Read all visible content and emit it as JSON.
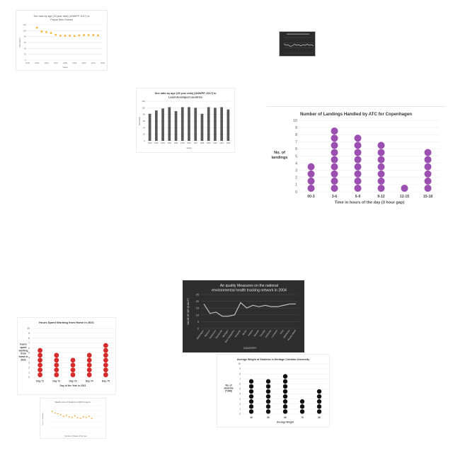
{
  "chart_data": [
    {
      "id": "p1",
      "type": "scatter",
      "title": "Sex ratio by age (15 year olds) (UNWPP, 2017) in Papua New Guinea",
      "xlabel": "Years",
      "ylabel": "Sex Ratio",
      "xlim": [
        1940,
        2020
      ],
      "ylim": [
        0,
        120
      ],
      "xticks": [
        "1940",
        "1950",
        "1960",
        "1970",
        "1980",
        "1990",
        "2000",
        "2010",
        "2020"
      ],
      "yticks": [
        "0",
        "20",
        "40",
        "60",
        "80",
        "100",
        "120"
      ],
      "x": [
        1950,
        1955,
        1960,
        1965,
        1970,
        1975,
        1980,
        1985,
        1990,
        1995,
        2000,
        2005,
        2010,
        2015
      ],
      "y": [
        110,
        97,
        95,
        92,
        86,
        83,
        83,
        83,
        82,
        84,
        85,
        85,
        85,
        84
      ],
      "color": "#f6b73c",
      "grid": true
    },
    {
      "id": "p2",
      "type": "line",
      "x": [
        1,
        2,
        3,
        4,
        5,
        6,
        7,
        8,
        9,
        10,
        11,
        12,
        13,
        14,
        15
      ],
      "y": [
        18,
        15,
        16,
        13,
        14,
        17,
        15,
        16,
        14,
        16,
        15,
        17,
        15,
        16,
        14
      ],
      "ylim": [
        0,
        30
      ],
      "color": "#cccccc",
      "background": "#2b2b2b"
    },
    {
      "id": "p3",
      "type": "bar",
      "title": "Sex ratio by age (15 year olds) (UNWPP, 2017) in Least developed countries",
      "xlabel": "Years",
      "ylabel": "Sex Ratio",
      "ylim": [
        0,
        120
      ],
      "yticks": [
        "0",
        "20",
        "40",
        "60",
        "80",
        "100",
        "120"
      ],
      "categories": [
        "1950",
        "1951",
        "1952",
        "1953",
        "1954",
        "1955",
        "1956",
        "1957",
        "1958",
        "1959",
        "1960",
        "1961",
        "1962"
      ],
      "values": [
        82,
        92,
        98,
        102,
        90,
        102,
        102,
        100,
        82,
        102,
        100,
        102,
        95
      ],
      "color": "#595959",
      "grid": true
    },
    {
      "id": "p4",
      "type": "bar",
      "title": "Number of Landings Handled by ATC for Copenhagen",
      "xlabel": "Time in hours of the day (3 hour gap)",
      "ylabel": "No. of landings",
      "ylim": [
        0,
        10
      ],
      "yticks": [
        "0",
        "1",
        "2",
        "3",
        "4",
        "5",
        "6",
        "7",
        "8",
        "9",
        "10"
      ],
      "categories": [
        "00-3",
        "3-6",
        "6-9",
        "9-12",
        "12-15",
        "15-18"
      ],
      "values": [
        4,
        9,
        8,
        7,
        1,
        6
      ],
      "color": "#9b4fb0",
      "grid": true
    },
    {
      "id": "p5",
      "type": "line",
      "title": "Air quality Measures on the national environmental health tracking network in 2004",
      "xlabel": "COUNTRY",
      "ylabel": "VALUE OF AIR QUALITY",
      "ylim": [
        0,
        25
      ],
      "yticks": [
        "0",
        "5",
        "10",
        "15",
        "20",
        "25"
      ],
      "categories": [
        "Washington",
        "Missouri",
        "Tennessee",
        "Minnesota",
        "Michigan",
        "New Hampshire",
        "Kentucky",
        "Illinois",
        "Indiana",
        "Nevada",
        "Georgia",
        "California",
        "Louisiana",
        "Iowa",
        "Oklahoma",
        "Rhode Island"
      ],
      "values": [
        18,
        11,
        12,
        9,
        9,
        10,
        19,
        15,
        17,
        16,
        17,
        16,
        16,
        17,
        18,
        18
      ],
      "color": "#bfbfbf",
      "background": "#2e2e2e",
      "grid": true
    },
    {
      "id": "p6",
      "type": "bar",
      "title": "Hours Spent Working from Home in 2021",
      "xlabel": "Day of the Year in 2021",
      "ylabel": "hours spent working from home in 2021",
      "ylim": [
        0,
        10
      ],
      "yticks": [
        "0",
        "1",
        "2",
        "3",
        "4",
        "5",
        "6",
        "7",
        "8",
        "9",
        "10"
      ],
      "categories": [
        "Day 71",
        "Day 72",
        "Day 73",
        "Day 74",
        "Day 75"
      ],
      "values": [
        6,
        5,
        4,
        5,
        7
      ],
      "color": "#d62b2b",
      "grid": true
    },
    {
      "id": "p7",
      "type": "bar",
      "title": "Average Weight of Students in Heritage Christian University",
      "xlabel": "Average Weight",
      "ylabel": "No. of students (*1000)",
      "ylim": [
        0,
        10
      ],
      "yticks": [
        "0",
        "1",
        "2",
        "3",
        "4",
        "5",
        "6",
        "7",
        "8",
        "9",
        "10"
      ],
      "categories": [
        "40",
        "50",
        "60",
        "70",
        "80"
      ],
      "values": [
        7,
        7,
        8,
        3,
        5
      ],
      "color": "#111111",
      "grid": true
    },
    {
      "id": "p8",
      "type": "scatter",
      "title": "Weekly score of Students in 2016 for age 6+",
      "xlabel": "Number of Weeks of the Year",
      "ylabel": "Score of Students",
      "xlim": [
        0,
        60
      ],
      "ylim": [
        0,
        100
      ],
      "x": [
        5,
        8,
        11,
        14,
        17,
        20,
        23,
        26,
        29,
        32,
        35,
        38,
        41,
        44,
        47
      ],
      "y": [
        78,
        72,
        70,
        66,
        60,
        64,
        58,
        56,
        62,
        55,
        53,
        58,
        56,
        60,
        52
      ],
      "color": "#f5a623",
      "grid": true
    }
  ]
}
